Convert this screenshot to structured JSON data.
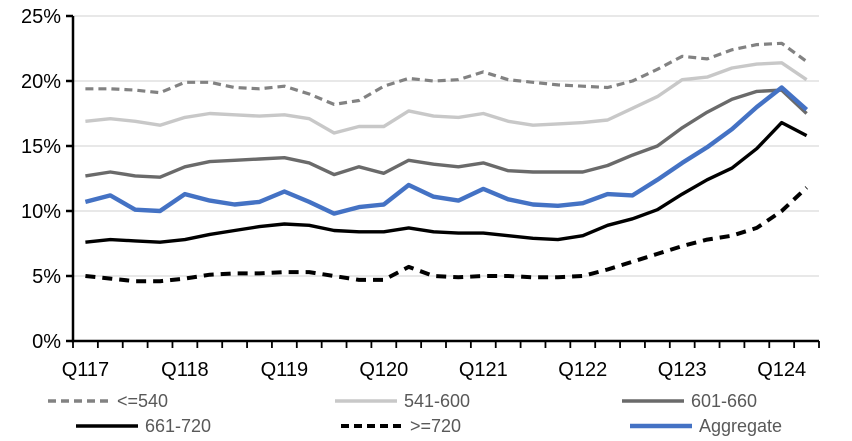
{
  "chart_data": {
    "type": "line",
    "title": "",
    "x_axis": {
      "tick_labels": [
        "Q117",
        "Q118",
        "Q119",
        "Q120",
        "Q121",
        "Q122",
        "Q123",
        "Q124"
      ],
      "label_category_indices": [
        0,
        4,
        8,
        12,
        16,
        20,
        24,
        28
      ],
      "n_points": 30,
      "start_quarter": "Q1 2017",
      "frequency": "quarterly"
    },
    "y_axis": {
      "tick_labels": [
        "0%",
        "5%",
        "10%",
        "15%",
        "20%",
        "25%"
      ],
      "min": 0,
      "max": 25,
      "tick_step": 5,
      "unit": "percent"
    },
    "grid": {
      "horizontal": true,
      "color": "#D9D9D9"
    },
    "series": [
      {
        "name": "<=540",
        "color": "#828282",
        "dash": "8 5",
        "width": 3.2,
        "values": [
          19.4,
          19.4,
          19.3,
          19.1,
          19.9,
          19.9,
          19.5,
          19.4,
          19.6,
          19.0,
          18.2,
          18.5,
          19.6,
          20.2,
          20.0,
          20.1,
          20.7,
          20.1,
          19.9,
          19.7,
          19.6,
          19.5,
          20.0,
          20.9,
          21.9,
          21.7,
          22.4,
          22.8,
          22.9,
          21.5
        ]
      },
      {
        "name": "541-600",
        "color": "#C8C8C8",
        "dash": null,
        "width": 3.4,
        "values": [
          16.9,
          17.1,
          16.9,
          16.6,
          17.2,
          17.5,
          17.4,
          17.3,
          17.4,
          17.1,
          16.0,
          16.5,
          16.5,
          17.7,
          17.3,
          17.2,
          17.5,
          16.9,
          16.6,
          16.7,
          16.8,
          17.0,
          17.9,
          18.8,
          20.1,
          20.3,
          21.0,
          21.3,
          21.4,
          20.1
        ]
      },
      {
        "name": "601-660",
        "color": "#6A6A6A",
        "dash": null,
        "width": 3.4,
        "values": [
          12.7,
          13.0,
          12.7,
          12.6,
          13.4,
          13.8,
          13.9,
          14.0,
          14.1,
          13.7,
          12.8,
          13.4,
          12.9,
          13.9,
          13.6,
          13.4,
          13.7,
          13.1,
          13.0,
          13.0,
          13.0,
          13.5,
          14.3,
          15.0,
          16.4,
          17.6,
          18.6,
          19.2,
          19.3,
          17.5
        ]
      },
      {
        "name": "661-720",
        "color": "#000000",
        "dash": null,
        "width": 3.4,
        "values": [
          7.6,
          7.8,
          7.7,
          7.6,
          7.8,
          8.2,
          8.5,
          8.8,
          9.0,
          8.9,
          8.5,
          8.4,
          8.4,
          8.7,
          8.4,
          8.3,
          8.3,
          8.1,
          7.9,
          7.8,
          8.1,
          8.9,
          9.4,
          10.1,
          11.3,
          12.4,
          13.3,
          14.8,
          16.8,
          15.8
        ]
      },
      {
        "name": ">=720",
        "color": "#000000",
        "dash": "10 7",
        "width": 4.0,
        "values": [
          5.0,
          4.8,
          4.6,
          4.6,
          4.8,
          5.1,
          5.2,
          5.2,
          5.3,
          5.3,
          5.0,
          4.7,
          4.7,
          5.7,
          5.0,
          4.9,
          5.0,
          5.0,
          4.9,
          4.9,
          5.0,
          5.5,
          6.1,
          6.7,
          7.3,
          7.8,
          8.1,
          8.7,
          10.0,
          11.8
        ]
      },
      {
        "name": "Aggregate",
        "color": "#4472C4",
        "dash": null,
        "width": 4.4,
        "values": [
          10.7,
          11.2,
          10.1,
          10.0,
          11.3,
          10.8,
          10.5,
          10.7,
          11.5,
          10.7,
          9.8,
          10.3,
          10.5,
          12.0,
          11.1,
          10.8,
          11.7,
          10.9,
          10.5,
          10.4,
          10.6,
          11.3,
          11.2,
          12.4,
          13.7,
          14.9,
          16.3,
          18.0,
          19.5,
          17.8
        ]
      }
    ],
    "legend": {
      "position": "bottom",
      "rows": [
        [
          "<=540",
          "541-600",
          "601-660"
        ],
        [
          "661-720",
          ">=720",
          "Aggregate"
        ]
      ],
      "text_color": "#595959"
    }
  }
}
